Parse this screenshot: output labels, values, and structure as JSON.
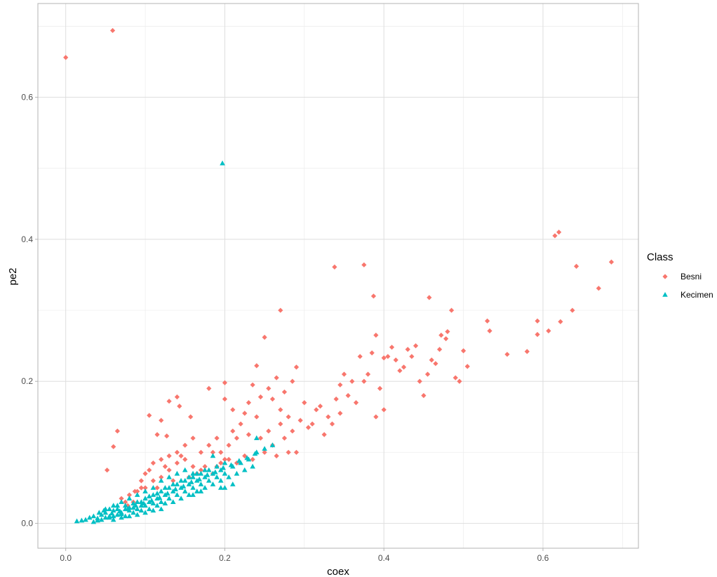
{
  "chart_data": {
    "type": "scatter",
    "xlabel": "coex",
    "ylabel": "pe2",
    "xlim": [
      -0.035,
      0.72
    ],
    "ylim": [
      -0.035,
      0.732
    ],
    "x_ticks": [
      0.0,
      0.2,
      0.4,
      0.6
    ],
    "x_tick_labels": [
      "0.0",
      "0.2",
      "0.4",
      "0.6"
    ],
    "y_ticks": [
      0.0,
      0.2,
      0.4,
      0.6
    ],
    "y_tick_labels": [
      "0.0",
      "0.2",
      "0.4",
      "0.6"
    ],
    "grid": true,
    "legend": {
      "title": "Class",
      "position": "right"
    },
    "series": [
      {
        "name": "Besni",
        "color": "#F8766D",
        "marker": "diamond",
        "points": [
          [
            0.0,
            0.656
          ],
          [
            0.059,
            0.694
          ],
          [
            0.06,
            0.108
          ],
          [
            0.065,
            0.13
          ],
          [
            0.052,
            0.075
          ],
          [
            0.105,
            0.152
          ],
          [
            0.13,
            0.172
          ],
          [
            0.14,
            0.178
          ],
          [
            0.12,
            0.145
          ],
          [
            0.127,
            0.123
          ],
          [
            0.157,
            0.15
          ],
          [
            0.143,
            0.165
          ],
          [
            0.115,
            0.125
          ],
          [
            0.18,
            0.19
          ],
          [
            0.2,
            0.198
          ],
          [
            0.2,
            0.175
          ],
          [
            0.27,
            0.3
          ],
          [
            0.25,
            0.262
          ],
          [
            0.338,
            0.361
          ],
          [
            0.375,
            0.364
          ],
          [
            0.387,
            0.32
          ],
          [
            0.39,
            0.265
          ],
          [
            0.457,
            0.318
          ],
          [
            0.485,
            0.3
          ],
          [
            0.53,
            0.285
          ],
          [
            0.533,
            0.271
          ],
          [
            0.555,
            0.238
          ],
          [
            0.58,
            0.242
          ],
          [
            0.593,
            0.285
          ],
          [
            0.593,
            0.266
          ],
          [
            0.607,
            0.271
          ],
          [
            0.615,
            0.405
          ],
          [
            0.62,
            0.41
          ],
          [
            0.622,
            0.284
          ],
          [
            0.637,
            0.3
          ],
          [
            0.642,
            0.362
          ],
          [
            0.67,
            0.331
          ],
          [
            0.686,
            0.368
          ],
          [
            0.5,
            0.243
          ],
          [
            0.505,
            0.221
          ],
          [
            0.478,
            0.26
          ],
          [
            0.47,
            0.245
          ],
          [
            0.46,
            0.23
          ],
          [
            0.44,
            0.25
          ],
          [
            0.43,
            0.245
          ],
          [
            0.42,
            0.215
          ],
          [
            0.41,
            0.248
          ],
          [
            0.4,
            0.233
          ],
          [
            0.395,
            0.19
          ],
          [
            0.39,
            0.15
          ],
          [
            0.4,
            0.16
          ],
          [
            0.385,
            0.24
          ],
          [
            0.37,
            0.235
          ],
          [
            0.36,
            0.2
          ],
          [
            0.35,
            0.21
          ],
          [
            0.345,
            0.195
          ],
          [
            0.34,
            0.175
          ],
          [
            0.33,
            0.15
          ],
          [
            0.32,
            0.165
          ],
          [
            0.31,
            0.14
          ],
          [
            0.3,
            0.17
          ],
          [
            0.29,
            0.22
          ],
          [
            0.285,
            0.2
          ],
          [
            0.275,
            0.185
          ],
          [
            0.265,
            0.205
          ],
          [
            0.26,
            0.175
          ],
          [
            0.255,
            0.19
          ],
          [
            0.245,
            0.178
          ],
          [
            0.24,
            0.222
          ],
          [
            0.235,
            0.195
          ],
          [
            0.23,
            0.17
          ],
          [
            0.225,
            0.155
          ],
          [
            0.22,
            0.14
          ],
          [
            0.215,
            0.12
          ],
          [
            0.21,
            0.13
          ],
          [
            0.205,
            0.11
          ],
          [
            0.2,
            0.09
          ],
          [
            0.195,
            0.1
          ],
          [
            0.19,
            0.08
          ],
          [
            0.185,
            0.07
          ],
          [
            0.17,
            0.075
          ],
          [
            0.16,
            0.08
          ],
          [
            0.15,
            0.09
          ],
          [
            0.14,
            0.085
          ],
          [
            0.13,
            0.075
          ],
          [
            0.12,
            0.065
          ],
          [
            0.11,
            0.06
          ],
          [
            0.1,
            0.05
          ],
          [
            0.09,
            0.045
          ],
          [
            0.08,
            0.04
          ],
          [
            0.078,
            0.025
          ],
          [
            0.085,
            0.03
          ],
          [
            0.095,
            0.05
          ],
          [
            0.105,
            0.075
          ],
          [
            0.115,
            0.05
          ],
          [
            0.125,
            0.08
          ],
          [
            0.135,
            0.06
          ],
          [
            0.145,
            0.095
          ],
          [
            0.155,
            0.065
          ],
          [
            0.165,
            0.07
          ],
          [
            0.175,
            0.08
          ],
          [
            0.185,
            0.1
          ],
          [
            0.195,
            0.085
          ],
          [
            0.205,
            0.09
          ],
          [
            0.215,
            0.085
          ],
          [
            0.225,
            0.095
          ],
          [
            0.235,
            0.09
          ],
          [
            0.245,
            0.12
          ],
          [
            0.25,
            0.1
          ],
          [
            0.255,
            0.13
          ],
          [
            0.26,
            0.11
          ],
          [
            0.265,
            0.095
          ],
          [
            0.27,
            0.14
          ],
          [
            0.275,
            0.12
          ],
          [
            0.28,
            0.1
          ],
          [
            0.285,
            0.13
          ],
          [
            0.29,
            0.1
          ],
          [
            0.295,
            0.145
          ],
          [
            0.305,
            0.135
          ],
          [
            0.315,
            0.16
          ],
          [
            0.325,
            0.125
          ],
          [
            0.335,
            0.14
          ],
          [
            0.345,
            0.155
          ],
          [
            0.355,
            0.18
          ],
          [
            0.365,
            0.17
          ],
          [
            0.375,
            0.2
          ],
          [
            0.38,
            0.21
          ],
          [
            0.405,
            0.235
          ],
          [
            0.415,
            0.23
          ],
          [
            0.425,
            0.22
          ],
          [
            0.435,
            0.235
          ],
          [
            0.445,
            0.2
          ],
          [
            0.45,
            0.18
          ],
          [
            0.455,
            0.21
          ],
          [
            0.465,
            0.225
          ],
          [
            0.472,
            0.265
          ],
          [
            0.48,
            0.27
          ],
          [
            0.49,
            0.205
          ],
          [
            0.495,
            0.2
          ],
          [
            0.21,
            0.16
          ],
          [
            0.23,
            0.125
          ],
          [
            0.24,
            0.15
          ],
          [
            0.27,
            0.16
          ],
          [
            0.28,
            0.15
          ],
          [
            0.17,
            0.1
          ],
          [
            0.18,
            0.11
          ],
          [
            0.19,
            0.12
          ],
          [
            0.16,
            0.12
          ],
          [
            0.15,
            0.11
          ],
          [
            0.14,
            0.1
          ],
          [
            0.13,
            0.095
          ],
          [
            0.12,
            0.09
          ],
          [
            0.11,
            0.085
          ],
          [
            0.1,
            0.07
          ],
          [
            0.095,
            0.06
          ],
          [
            0.087,
            0.045
          ],
          [
            0.07,
            0.035
          ],
          [
            0.075,
            0.03
          ]
        ]
      },
      {
        "name": "Kecimen",
        "color": "#00BFC4",
        "marker": "triangle",
        "points": [
          [
            0.197,
            0.507
          ],
          [
            0.014,
            0.003
          ],
          [
            0.02,
            0.004
          ],
          [
            0.025,
            0.005
          ],
          [
            0.03,
            0.008
          ],
          [
            0.035,
            0.01
          ],
          [
            0.04,
            0.007
          ],
          [
            0.045,
            0.012
          ],
          [
            0.05,
            0.015
          ],
          [
            0.055,
            0.01
          ],
          [
            0.06,
            0.018
          ],
          [
            0.065,
            0.02
          ],
          [
            0.07,
            0.015
          ],
          [
            0.075,
            0.025
          ],
          [
            0.08,
            0.022
          ],
          [
            0.085,
            0.028
          ],
          [
            0.09,
            0.03
          ],
          [
            0.095,
            0.025
          ],
          [
            0.1,
            0.035
          ],
          [
            0.105,
            0.03
          ],
          [
            0.11,
            0.04
          ],
          [
            0.115,
            0.035
          ],
          [
            0.12,
            0.045
          ],
          [
            0.125,
            0.04
          ],
          [
            0.13,
            0.05
          ],
          [
            0.135,
            0.045
          ],
          [
            0.14,
            0.055
          ],
          [
            0.145,
            0.05
          ],
          [
            0.15,
            0.06
          ],
          [
            0.155,
            0.055
          ],
          [
            0.16,
            0.065
          ],
          [
            0.165,
            0.06
          ],
          [
            0.17,
            0.07
          ],
          [
            0.175,
            0.065
          ],
          [
            0.18,
            0.075
          ],
          [
            0.185,
            0.07
          ],
          [
            0.19,
            0.08
          ],
          [
            0.195,
            0.075
          ],
          [
            0.2,
            0.085
          ],
          [
            0.21,
            0.08
          ],
          [
            0.22,
            0.085
          ],
          [
            0.23,
            0.09
          ],
          [
            0.24,
            0.1
          ],
          [
            0.25,
            0.105
          ],
          [
            0.26,
            0.11
          ],
          [
            0.24,
            0.12
          ],
          [
            0.185,
            0.095
          ],
          [
            0.16,
            0.07
          ],
          [
            0.15,
            0.075
          ],
          [
            0.14,
            0.07
          ],
          [
            0.13,
            0.065
          ],
          [
            0.12,
            0.06
          ],
          [
            0.11,
            0.05
          ],
          [
            0.1,
            0.045
          ],
          [
            0.09,
            0.04
          ],
          [
            0.08,
            0.035
          ],
          [
            0.07,
            0.03
          ],
          [
            0.06,
            0.025
          ],
          [
            0.05,
            0.02
          ],
          [
            0.045,
            0.005
          ],
          [
            0.055,
            0.008
          ],
          [
            0.065,
            0.012
          ],
          [
            0.075,
            0.01
          ],
          [
            0.085,
            0.015
          ],
          [
            0.095,
            0.018
          ],
          [
            0.105,
            0.02
          ],
          [
            0.115,
            0.025
          ],
          [
            0.125,
            0.028
          ],
          [
            0.135,
            0.03
          ],
          [
            0.145,
            0.035
          ],
          [
            0.155,
            0.04
          ],
          [
            0.165,
            0.045
          ],
          [
            0.175,
            0.05
          ],
          [
            0.185,
            0.055
          ],
          [
            0.195,
            0.06
          ],
          [
            0.205,
            0.065
          ],
          [
            0.215,
            0.07
          ],
          [
            0.225,
            0.075
          ],
          [
            0.235,
            0.08
          ],
          [
            0.2,
            0.07
          ],
          [
            0.19,
            0.065
          ],
          [
            0.18,
            0.06
          ],
          [
            0.17,
            0.055
          ],
          [
            0.16,
            0.05
          ],
          [
            0.15,
            0.045
          ],
          [
            0.14,
            0.04
          ],
          [
            0.13,
            0.035
          ],
          [
            0.12,
            0.03
          ],
          [
            0.11,
            0.028
          ],
          [
            0.1,
            0.025
          ],
          [
            0.09,
            0.02
          ],
          [
            0.08,
            0.018
          ],
          [
            0.07,
            0.013
          ],
          [
            0.06,
            0.01
          ],
          [
            0.05,
            0.008
          ],
          [
            0.04,
            0.004
          ],
          [
            0.035,
            0.002
          ],
          [
            0.055,
            0.02
          ],
          [
            0.065,
            0.025
          ],
          [
            0.075,
            0.02
          ],
          [
            0.085,
            0.022
          ],
          [
            0.095,
            0.03
          ],
          [
            0.105,
            0.038
          ],
          [
            0.115,
            0.042
          ],
          [
            0.125,
            0.05
          ],
          [
            0.135,
            0.055
          ],
          [
            0.145,
            0.06
          ],
          [
            0.155,
            0.065
          ],
          [
            0.165,
            0.07
          ],
          [
            0.175,
            0.075
          ],
          [
            0.2,
            0.05
          ],
          [
            0.21,
            0.055
          ],
          [
            0.195,
            0.05
          ],
          [
            0.17,
            0.045
          ],
          [
            0.16,
            0.04
          ],
          [
            0.06,
            0.005
          ],
          [
            0.07,
            0.008
          ],
          [
            0.08,
            0.01
          ],
          [
            0.09,
            0.012
          ],
          [
            0.1,
            0.015
          ],
          [
            0.11,
            0.018
          ],
          [
            0.12,
            0.02
          ],
          [
            0.042,
            0.015
          ],
          [
            0.048,
            0.018
          ],
          [
            0.058,
            0.014
          ],
          [
            0.068,
            0.017
          ],
          [
            0.078,
            0.02
          ],
          [
            0.088,
            0.025
          ],
          [
            0.098,
            0.028
          ],
          [
            0.108,
            0.032
          ],
          [
            0.118,
            0.036
          ],
          [
            0.128,
            0.042
          ],
          [
            0.138,
            0.048
          ],
          [
            0.148,
            0.052
          ],
          [
            0.158,
            0.058
          ],
          [
            0.168,
            0.062
          ],
          [
            0.178,
            0.068
          ],
          [
            0.188,
            0.072
          ],
          [
            0.198,
            0.078
          ],
          [
            0.208,
            0.082
          ],
          [
            0.218,
            0.088
          ],
          [
            0.228,
            0.092
          ],
          [
            0.238,
            0.098
          ]
        ]
      }
    ]
  }
}
